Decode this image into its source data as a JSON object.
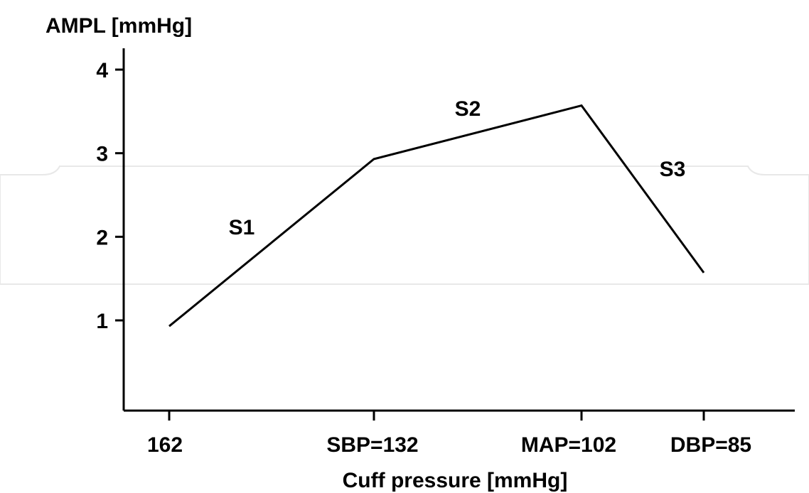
{
  "chart_data": {
    "type": "line",
    "ylabel": "AMPL [mmHg]",
    "xlabel": "Cuff pressure [mmHg]",
    "categories": [
      "162",
      "SBP=132",
      "MAP=102",
      "DBP=85"
    ],
    "x": [
      162,
      132,
      102,
      85
    ],
    "series": [
      {
        "values": [
          0.93,
          2.93,
          3.57,
          1.57
        ]
      }
    ],
    "yticks": [
      "1",
      "2",
      "3",
      "4"
    ],
    "ytick_values": [
      1,
      2,
      3,
      4
    ],
    "ylim": [
      0,
      4.25
    ],
    "segment_labels": [
      "S1",
      "S2",
      "S3"
    ],
    "grid": false,
    "colors": {
      "line": "#000000",
      "axis": "#000000",
      "background": "#ffffff"
    }
  }
}
